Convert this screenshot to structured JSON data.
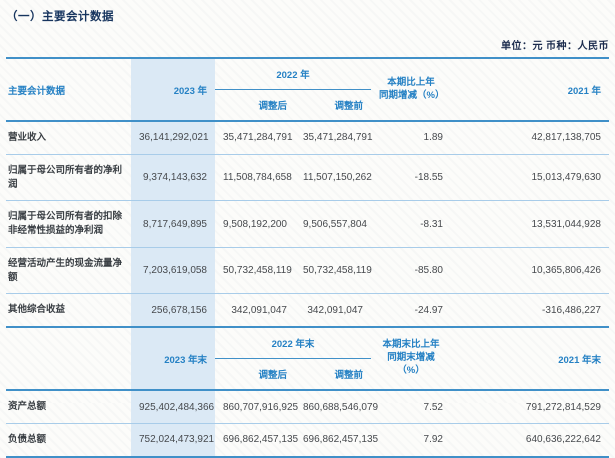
{
  "page": {
    "title": "（一）主要会计数据",
    "unit_note": "单位：元 币种：人民币"
  },
  "colors": {
    "header_blue": "#2581c4",
    "band": "#dbe9f5",
    "line_strong": "#4090c8",
    "line_light": "#a8cce9"
  },
  "t1": {
    "header": {
      "col_label": "主要会计数据",
      "col_2023": "2023 年",
      "col_2022": "2022 年",
      "col_adjusted": "调整后",
      "col_before": "调整前",
      "col_change_line1": "本期比上年",
      "col_change_line2": "同期增减（%）",
      "col_2021": "2021 年"
    },
    "rows": [
      {
        "label": "营业收入",
        "y2023": "36,141,292,021",
        "adj_after": "35,471,284,791",
        "adj_before": "35,471,284,791",
        "change": "1.89",
        "y2021": "42,817,138,705"
      },
      {
        "label": "归属于母公司所有者的净利润",
        "y2023": "9,374,143,632",
        "adj_after": "11,508,784,658",
        "adj_before": "11,507,150,262",
        "change": "-18.55",
        "y2021": "15,013,479,630"
      },
      {
        "label": "归属于母公司所有者的扣除非经常性损益的净利润",
        "y2023": "8,717,649,895",
        "adj_after": "9,508,192,200",
        "adj_before": "9,506,557,804",
        "change": "-8.31",
        "y2021": "13,531,044,928"
      },
      {
        "label": "经营活动产生的现金流量净额",
        "y2023": "7,203,619,058",
        "adj_after": "50,732,458,119",
        "adj_before": "50,732,458,119",
        "change": "-85.80",
        "y2021": "10,365,806,426"
      },
      {
        "label": "其他综合收益",
        "y2023": "256,678,156",
        "adj_after": "342,091,047",
        "adj_before": "342,091,047",
        "change": "-24.97",
        "y2021": "-316,486,227"
      }
    ]
  },
  "t2": {
    "header": {
      "col_label": "",
      "col_2023": "2023 年末",
      "col_2022": "2022 年末",
      "col_adjusted": "调整后",
      "col_before": "调整前",
      "col_change_line1": "本期末比上年",
      "col_change_line2": "同期末增减（%）",
      "col_2021": "2021 年末"
    },
    "rows": [
      {
        "label": "资产总额",
        "y2023": "925,402,484,366",
        "adj_after": "860,707,916,925",
        "adj_before": "860,688,546,079",
        "change": "7.52",
        "y2021": "791,272,814,529"
      },
      {
        "label": "负债总额",
        "y2023": "752,024,473,921",
        "adj_after": "696,862,457,135",
        "adj_before": "696,862,457,135",
        "change": "7.92",
        "y2021": "640,636,222,642"
      }
    ]
  }
}
